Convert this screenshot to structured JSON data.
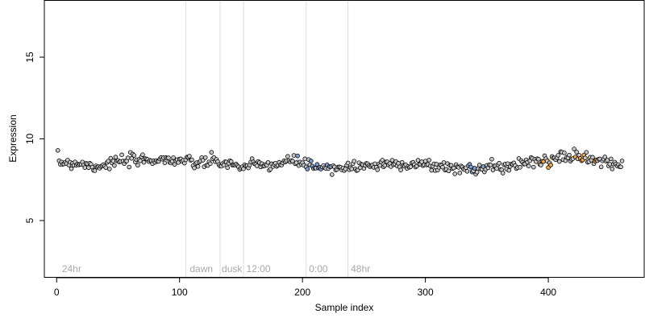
{
  "chart_data": {
    "type": "scatter",
    "xlabel": "Sample index",
    "ylabel": "Expression",
    "xlim": [
      -10,
      478
    ],
    "ylim": [
      1.5,
      18.5
    ],
    "x_ticks": [
      0,
      100,
      200,
      300,
      400
    ],
    "y_ticks": [
      5,
      10,
      15
    ],
    "grid": false,
    "condition_lines": [
      105,
      133,
      152,
      203,
      237
    ],
    "condition_labels": [
      {
        "x": 3,
        "text": "24hr"
      },
      {
        "x": 107,
        "text": "dawn"
      },
      {
        "x": 133,
        "text": "dusk"
      },
      {
        "x": 153,
        "text": "12:00"
      },
      {
        "x": 204,
        "text": "0:00"
      },
      {
        "x": 238,
        "text": "48hr"
      }
    ],
    "n_samples": 460,
    "trend": [
      [
        0,
        8.6
      ],
      [
        20,
        8.5
      ],
      [
        30,
        8.3
      ],
      [
        50,
        8.6
      ],
      [
        80,
        8.75
      ],
      [
        100,
        8.7
      ],
      [
        110,
        8.5
      ],
      [
        130,
        8.6
      ],
      [
        150,
        8.3
      ],
      [
        180,
        8.45
      ],
      [
        195,
        8.7
      ],
      [
        210,
        8.2
      ],
      [
        240,
        8.3
      ],
      [
        280,
        8.5
      ],
      [
        300,
        8.4
      ],
      [
        340,
        8.1
      ],
      [
        370,
        8.4
      ],
      [
        395,
        8.7
      ],
      [
        425,
        8.9
      ],
      [
        445,
        8.6
      ],
      [
        460,
        8.4
      ]
    ],
    "noise_sd": 0.18,
    "highlight_segments": [
      {
        "x": [
          195,
          228
        ],
        "color": "#7f9fd4"
      },
      {
        "x": [
          336,
          348
        ],
        "color": "#7f9fd4"
      },
      {
        "x": [
          393,
          402
        ],
        "color": "#f5a742"
      },
      {
        "x": [
          415,
          440
        ],
        "color": "#f5a742"
      }
    ],
    "point_fill": "#c8c8c8",
    "point_edge": "#000000"
  }
}
